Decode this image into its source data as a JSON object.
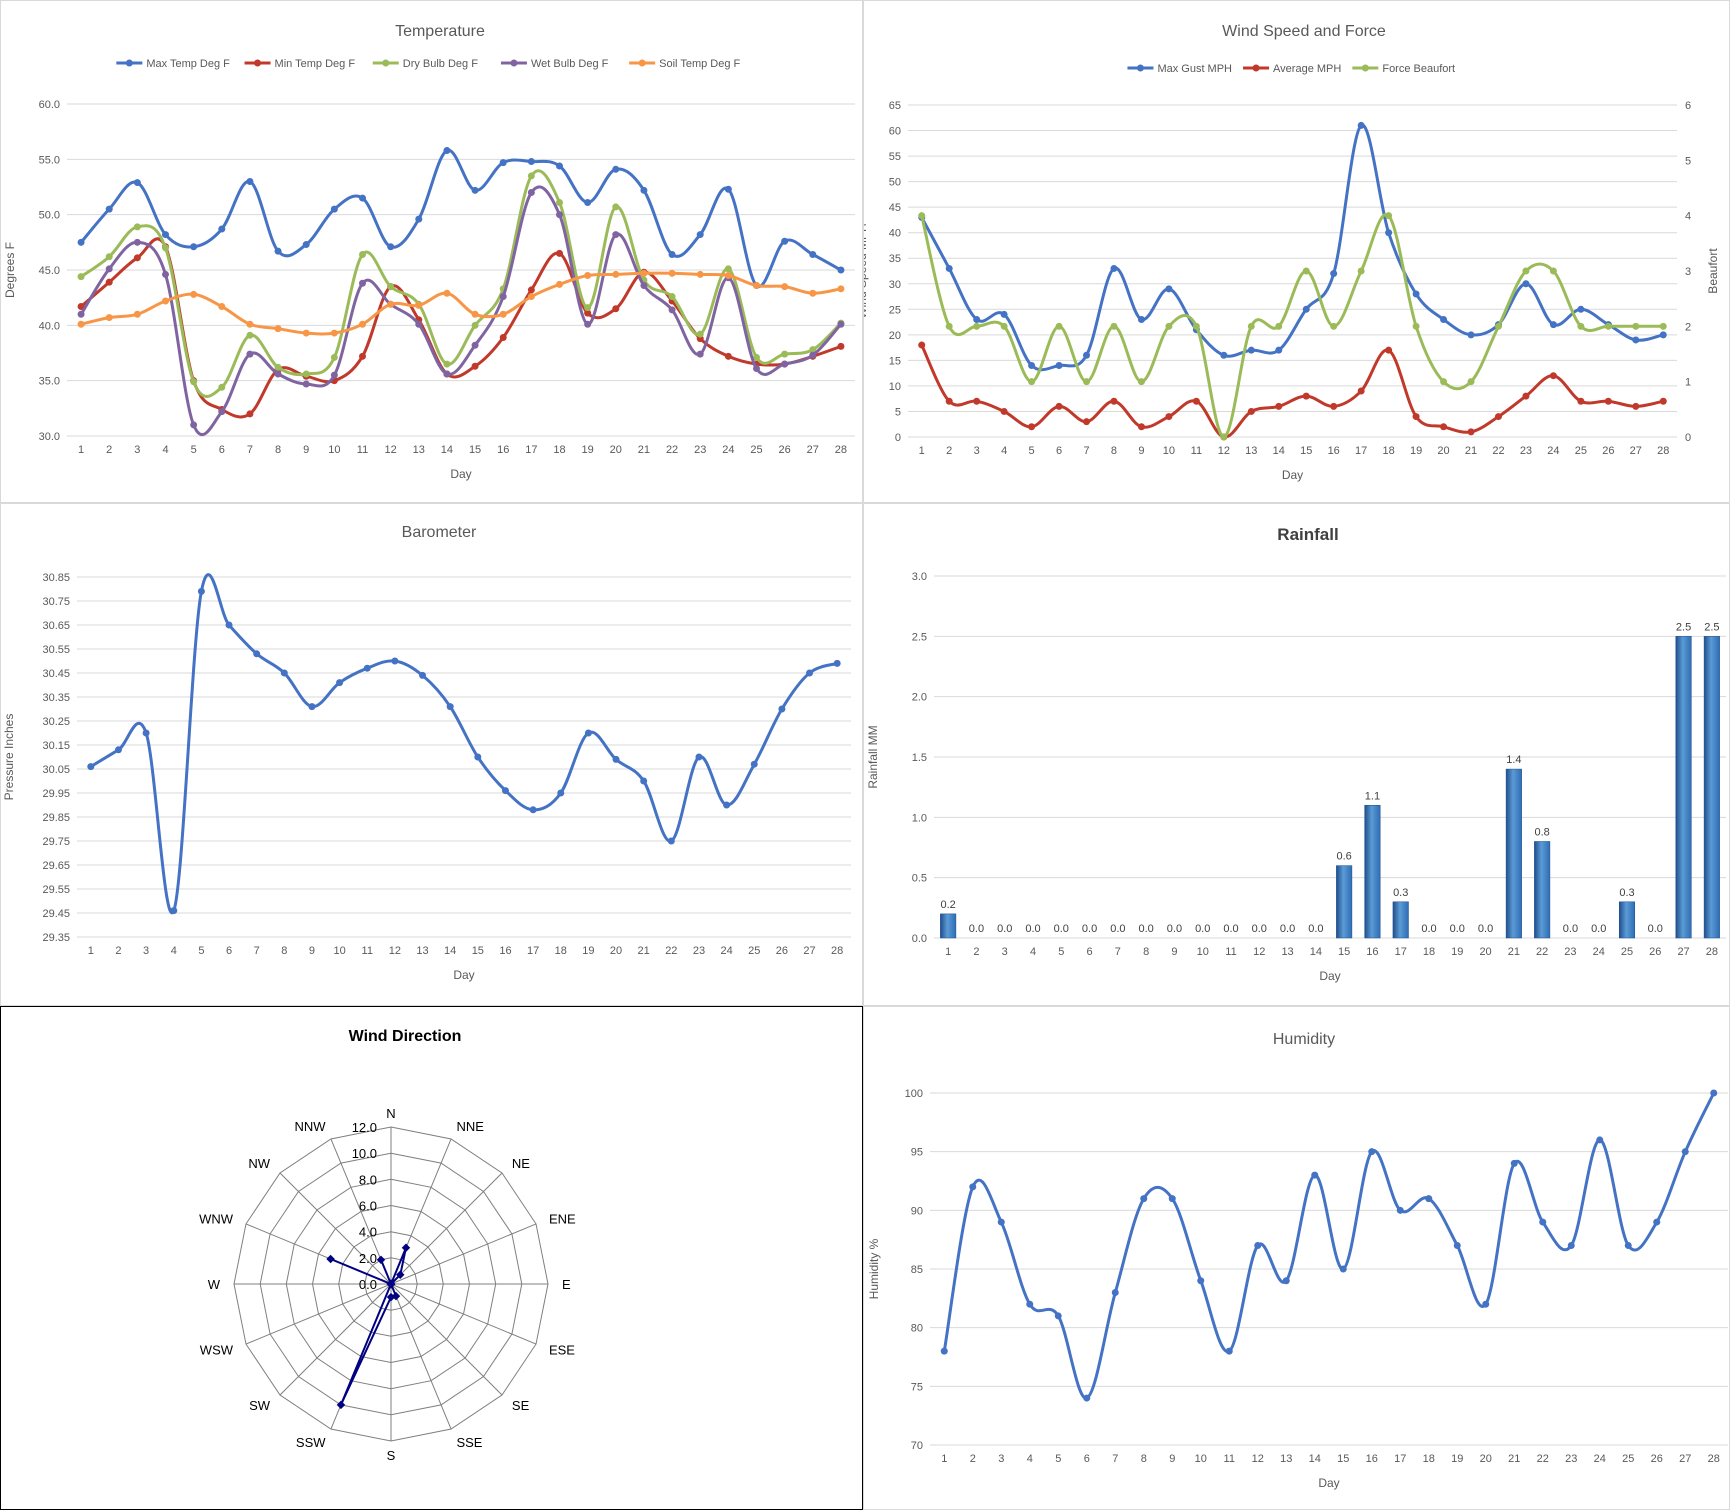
{
  "chart_data": [
    {
      "id": "temp",
      "type": "line",
      "title": "Temperature",
      "xlabel": "Day",
      "ylabel": "Degrees F",
      "ylim": [
        30,
        60
      ],
      "yticks": [
        "30.0",
        "35.0",
        "40.0",
        "45.0",
        "50.0",
        "55.0",
        "60.0"
      ],
      "grid": true,
      "legend": "top",
      "categories": [
        "1",
        "2",
        "3",
        "4",
        "5",
        "6",
        "7",
        "8",
        "9",
        "10",
        "11",
        "12",
        "13",
        "14",
        "15",
        "16",
        "17",
        "18",
        "19",
        "20",
        "21",
        "22",
        "23",
        "24",
        "25",
        "26",
        "27",
        "28"
      ],
      "series": [
        {
          "name": "Max Temp Deg F",
          "color": "#4472c4",
          "values": [
            47.5,
            50.5,
            52.9,
            48.2,
            47.1,
            48.7,
            53.0,
            46.7,
            47.3,
            50.5,
            51.5,
            47.1,
            49.6,
            55.8,
            52.2,
            54.7,
            54.8,
            54.4,
            51.1,
            54.1,
            52.2,
            46.4,
            48.2,
            52.3,
            43.6,
            47.6,
            46.4,
            45.0
          ]
        },
        {
          "name": "Min Temp Deg F",
          "color": "#c0392b",
          "values": [
            41.7,
            43.9,
            46.1,
            47.1,
            35.0,
            32.4,
            32.0,
            36.0,
            35.4,
            35.0,
            37.2,
            43.5,
            40.5,
            35.6,
            36.3,
            38.9,
            43.2,
            46.5,
            41.1,
            41.5,
            44.8,
            42.2,
            38.8,
            37.2,
            36.5,
            36.5,
            37.2,
            38.1
          ]
        },
        {
          "name": "Dry Bulb Deg F",
          "color": "#9bbb59",
          "values": [
            44.4,
            46.2,
            48.9,
            47.0,
            34.9,
            34.4,
            39.1,
            36.2,
            35.6,
            37.1,
            46.4,
            43.5,
            41.9,
            36.5,
            40.0,
            43.3,
            53.5,
            51.1,
            41.6,
            50.7,
            44.1,
            42.6,
            39.2,
            45.1,
            37.1,
            37.4,
            37.8,
            40.2
          ]
        },
        {
          "name": "Wet Bulb Deg F",
          "color": "#8064a2",
          "values": [
            41.0,
            45.1,
            47.5,
            44.6,
            31.0,
            32.2,
            37.4,
            35.6,
            34.7,
            35.5,
            43.8,
            41.9,
            40.1,
            35.6,
            38.2,
            42.6,
            52.0,
            50.0,
            40.1,
            48.2,
            43.6,
            41.4,
            37.4,
            44.3,
            36.1,
            36.5,
            37.3,
            40.1
          ]
        },
        {
          "name": "Soil Temp Deg F",
          "color": "#f79646",
          "values": [
            40.1,
            40.7,
            41.0,
            42.2,
            42.8,
            41.7,
            40.1,
            39.7,
            39.3,
            39.3,
            40.1,
            41.9,
            41.8,
            42.9,
            41.0,
            41.0,
            42.6,
            43.7,
            44.5,
            44.6,
            44.7,
            44.7,
            44.6,
            44.5,
            43.6,
            43.5,
            42.9,
            43.3
          ]
        }
      ]
    },
    {
      "id": "wind",
      "type": "line",
      "title": "Wind Speed and Force",
      "xlabel": "Day",
      "ylabel": "Wind Speed MPH",
      "y2label": "Beaufort",
      "ylim": [
        0,
        65
      ],
      "y2lim": [
        0,
        6
      ],
      "yticks": [
        "0",
        "5",
        "10",
        "15",
        "20",
        "25",
        "30",
        "35",
        "40",
        "45",
        "50",
        "55",
        "60",
        "65"
      ],
      "y2ticks": [
        "0",
        "1",
        "2",
        "3",
        "4",
        "5",
        "6"
      ],
      "grid": true,
      "legend": "top",
      "categories": [
        "1",
        "2",
        "3",
        "4",
        "5",
        "6",
        "7",
        "8",
        "9",
        "10",
        "11",
        "12",
        "13",
        "14",
        "15",
        "16",
        "17",
        "18",
        "19",
        "20",
        "21",
        "22",
        "23",
        "24",
        "25",
        "26",
        "27",
        "28"
      ],
      "series": [
        {
          "name": "Max Gust MPH",
          "color": "#4472c4",
          "axis": "left",
          "values": [
            43,
            33,
            23,
            24,
            14,
            14,
            16,
            33,
            23,
            29,
            21,
            16,
            17,
            17,
            25,
            32,
            61,
            40,
            28,
            23,
            20,
            22,
            30,
            22,
            25,
            22,
            19,
            20
          ]
        },
        {
          "name": "Average MPH",
          "color": "#c0392b",
          "axis": "left",
          "values": [
            18,
            7,
            7,
            5,
            2,
            6,
            3,
            7,
            2,
            4,
            7,
            0,
            5,
            6,
            8,
            6,
            9,
            17,
            4,
            2,
            1,
            4,
            8,
            12,
            7,
            7,
            6,
            7
          ]
        },
        {
          "name": "Force Beaufort",
          "color": "#9bbb59",
          "axis": "right",
          "values": [
            4,
            2,
            2,
            2,
            1,
            2,
            1,
            2,
            1,
            2,
            2,
            0,
            2,
            2,
            3,
            2,
            3,
            4,
            2,
            1,
            1,
            2,
            3,
            3,
            2,
            2,
            2,
            2
          ]
        }
      ]
    },
    {
      "id": "baro",
      "type": "line",
      "title": "Barometer",
      "xlabel": "Day",
      "ylabel": "Pressure Inches",
      "ylim": [
        29.35,
        30.85
      ],
      "yticks": [
        "29.35",
        "29.45",
        "29.55",
        "29.65",
        "29.75",
        "29.85",
        "29.95",
        "30.05",
        "30.15",
        "30.25",
        "30.35",
        "30.45",
        "30.55",
        "30.65",
        "30.75",
        "30.85"
      ],
      "grid": true,
      "categories": [
        "1",
        "2",
        "3",
        "4",
        "5",
        "6",
        "7",
        "8",
        "9",
        "10",
        "11",
        "12",
        "13",
        "14",
        "15",
        "16",
        "17",
        "18",
        "19",
        "20",
        "21",
        "22",
        "23",
        "24",
        "25",
        "26",
        "27",
        "28"
      ],
      "series": [
        {
          "color": "#4472c4",
          "values": [
            30.06,
            30.13,
            30.2,
            29.46,
            30.79,
            30.65,
            30.53,
            30.45,
            30.31,
            30.41,
            30.47,
            30.5,
            30.44,
            30.31,
            30.1,
            29.96,
            29.88,
            29.95,
            30.2,
            30.09,
            30.0,
            29.75,
            30.1,
            29.9,
            30.07,
            30.3,
            30.45,
            30.49
          ]
        }
      ]
    },
    {
      "id": "rain",
      "type": "bar",
      "title": "Rainfall",
      "xlabel": "Day",
      "ylabel": "Rainfall MM",
      "ylim": [
        0,
        3
      ],
      "yticks": [
        "0.0",
        "0.5",
        "1.0",
        "1.5",
        "2.0",
        "2.5",
        "3.0"
      ],
      "grid": true,
      "categories": [
        "1",
        "2",
        "3",
        "4",
        "5",
        "6",
        "7",
        "8",
        "9",
        "10",
        "11",
        "12",
        "13",
        "14",
        "15",
        "16",
        "17",
        "18",
        "19",
        "20",
        "21",
        "22",
        "23",
        "24",
        "25",
        "26",
        "27",
        "28"
      ],
      "values": [
        0.2,
        0,
        0,
        0,
        0,
        0,
        0,
        0,
        0,
        0,
        0,
        0,
        0,
        0,
        0.6,
        1.1,
        0.3,
        0,
        0,
        0,
        1.4,
        0.8,
        0,
        0,
        0.3,
        0,
        2.5,
        2.5
      ],
      "labels": [
        "0.2",
        "0.0",
        "0.0",
        "0.0",
        "0.0",
        "0.0",
        "0.0",
        "0.0",
        "0.0",
        "0.0",
        "0.0",
        "0.0",
        "0.0",
        "0.0",
        "0.6",
        "1.1",
        "0.3",
        "0.0",
        "0.0",
        "0.0",
        "1.4",
        "0.8",
        "0.0",
        "0.0",
        "0.3",
        "0.0",
        "2.5",
        "2.5"
      ]
    },
    {
      "id": "dir",
      "type": "radar",
      "title": "Wind Direction",
      "rlim": [
        0,
        12
      ],
      "rticks": [
        "0.0",
        "2.0",
        "4.0",
        "6.0",
        "8.0",
        "10.0",
        "12.0"
      ],
      "categories": [
        "N",
        "NNE",
        "NE",
        "ENE",
        "E",
        "ESE",
        "SE",
        "SSE",
        "S",
        "SSW",
        "SW",
        "WSW",
        "W",
        "WNW",
        "NW",
        "NNW"
      ],
      "series": [
        {
          "color": "#000080",
          "values": [
            0,
            3,
            1,
            0,
            0,
            0,
            0,
            1,
            1,
            10,
            0,
            0,
            0,
            5,
            0,
            2
          ]
        }
      ]
    },
    {
      "id": "humid",
      "type": "line",
      "title": "Humidity",
      "xlabel": "Day",
      "ylabel": "Humidity %",
      "ylim": [
        70,
        100
      ],
      "yticks": [
        "70",
        "75",
        "80",
        "85",
        "90",
        "95",
        "100"
      ],
      "grid": true,
      "categories": [
        "1",
        "2",
        "3",
        "4",
        "5",
        "6",
        "7",
        "8",
        "9",
        "10",
        "11",
        "12",
        "13",
        "14",
        "15",
        "16",
        "17",
        "18",
        "19",
        "20",
        "21",
        "22",
        "23",
        "24",
        "25",
        "26",
        "27",
        "28"
      ],
      "series": [
        {
          "color": "#4472c4",
          "values": [
            78,
            92,
            89,
            82,
            81,
            74,
            83,
            91,
            91,
            84,
            78,
            87,
            84,
            93,
            85,
            95,
            90,
            91,
            87,
            82,
            94,
            89,
            87,
            96,
            87,
            89,
            95,
            100
          ]
        }
      ]
    }
  ]
}
